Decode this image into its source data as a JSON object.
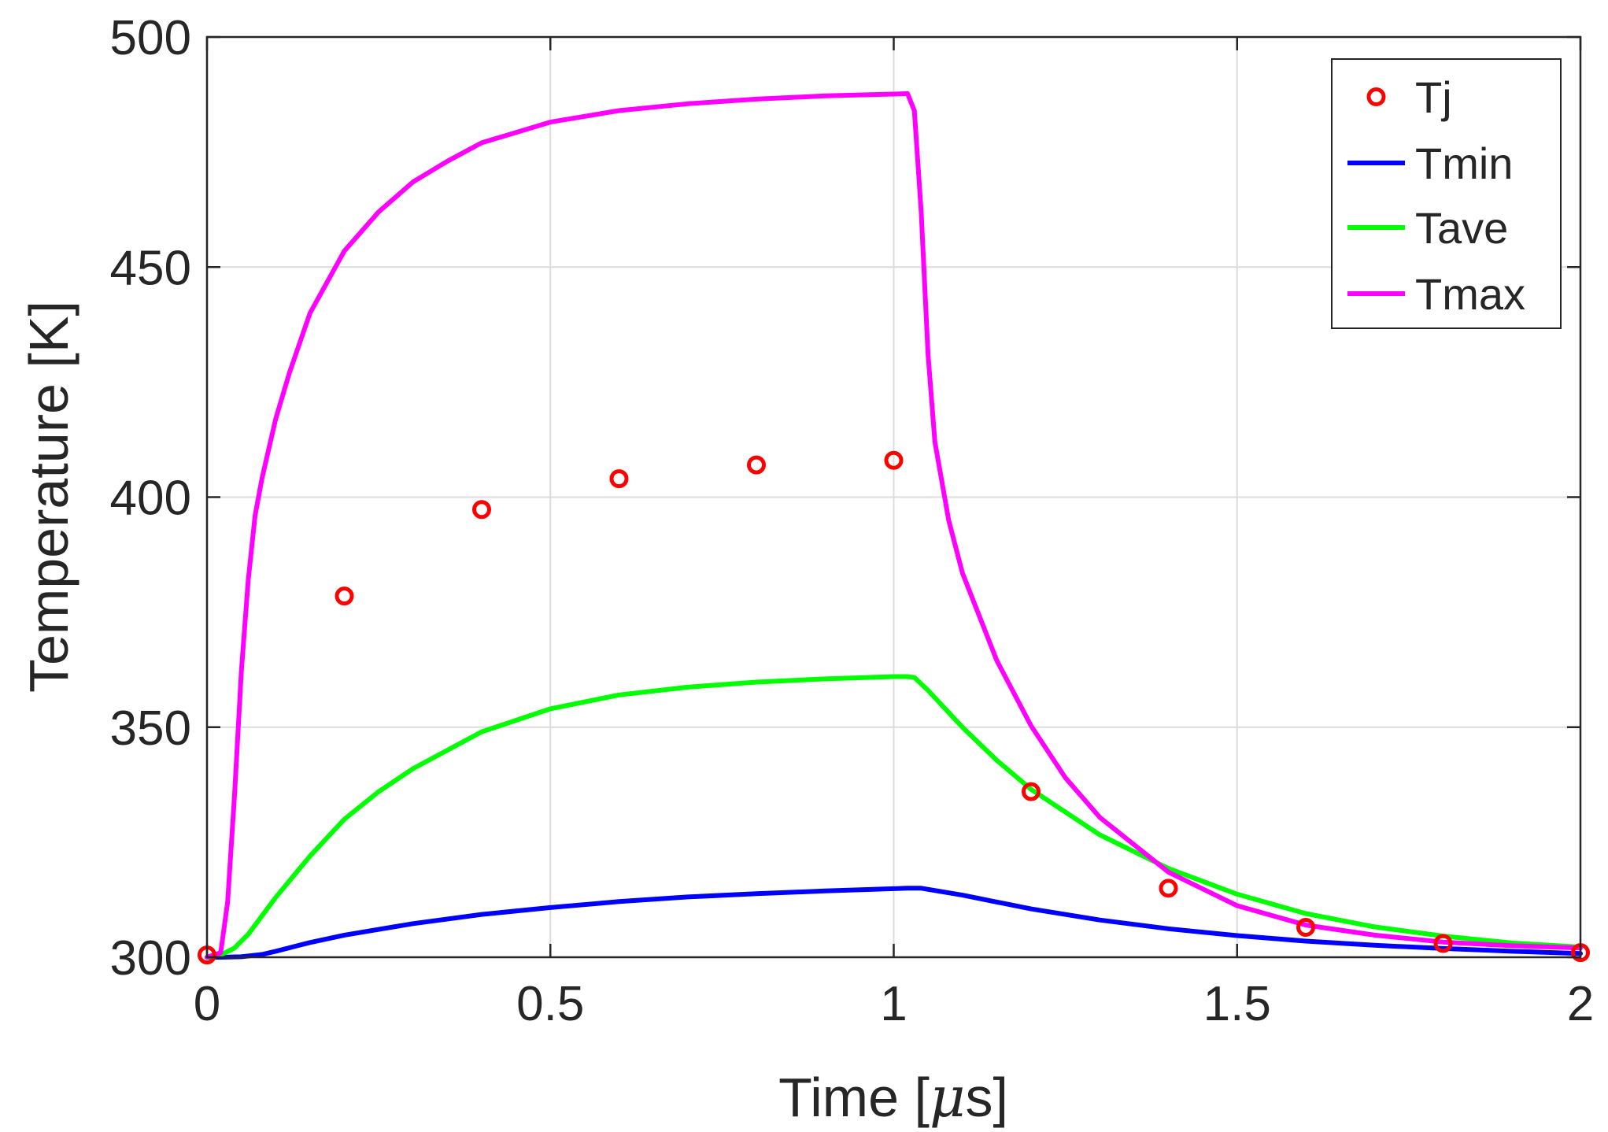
{
  "chart_data": {
    "type": "line",
    "title": "",
    "xlabel_text": "Time [",
    "xlabel_symbol": "μ",
    "xlabel_unit": "s]",
    "xlabel": "Time [μs]",
    "ylabel": "Temperature [K]",
    "xlim": [
      0,
      2
    ],
    "ylim": [
      300,
      500
    ],
    "grid": true,
    "legend_position": "top-right",
    "x_ticks": [
      0,
      0.5,
      1,
      1.5,
      2
    ],
    "y_ticks": [
      300,
      350,
      400,
      450,
      500
    ],
    "series": [
      {
        "name": "Tj",
        "kind": "markers",
        "color": "#ff0000",
        "x": [
          0,
          0.2,
          0.4,
          0.6,
          0.8,
          1.0,
          1.2,
          1.4,
          1.6,
          1.8,
          2.0
        ],
        "y": [
          300.5,
          378.5,
          397.3,
          404,
          407,
          408,
          336,
          315,
          306.5,
          303,
          301
        ]
      },
      {
        "name": "Tmin",
        "kind": "line",
        "color": "#0000ff",
        "x": [
          0,
          0.02,
          0.05,
          0.08,
          0.1,
          0.15,
          0.2,
          0.3,
          0.4,
          0.5,
          0.6,
          0.7,
          0.8,
          0.9,
          1.0,
          1.02,
          1.04,
          1.1,
          1.2,
          1.3,
          1.4,
          1.5,
          1.6,
          1.7,
          1.8,
          1.9,
          2.0
        ],
        "y": [
          300,
          300,
          300.1,
          300.6,
          301.3,
          303.2,
          304.8,
          307.3,
          309.3,
          310.8,
          312.1,
          313.1,
          313.8,
          314.4,
          314.9,
          315,
          315,
          313.5,
          310.5,
          308.1,
          306.2,
          304.7,
          303.5,
          302.6,
          301.9,
          301.3,
          300.8
        ]
      },
      {
        "name": "Tave",
        "kind": "line",
        "color": "#00ff00",
        "x": [
          0,
          0.02,
          0.04,
          0.06,
          0.08,
          0.1,
          0.15,
          0.2,
          0.25,
          0.3,
          0.4,
          0.5,
          0.6,
          0.7,
          0.8,
          0.9,
          1.0,
          1.02,
          1.03,
          1.05,
          1.1,
          1.15,
          1.2,
          1.3,
          1.4,
          1.5,
          1.6,
          1.7,
          1.8,
          1.9,
          2.0
        ],
        "y": [
          300,
          300.5,
          302,
          305,
          309,
          313,
          322,
          330,
          336,
          341,
          349,
          354,
          357,
          358.7,
          359.8,
          360.5,
          361,
          361,
          360.8,
          358,
          350,
          342.8,
          336.5,
          326.6,
          319.3,
          313.7,
          309.5,
          306.6,
          304.6,
          303.1,
          302.2
        ]
      },
      {
        "name": "Tmax",
        "kind": "line",
        "color": "#ff00ff",
        "x": [
          0,
          0.02,
          0.03,
          0.04,
          0.05,
          0.06,
          0.07,
          0.08,
          0.1,
          0.12,
          0.15,
          0.2,
          0.25,
          0.3,
          0.35,
          0.4,
          0.5,
          0.6,
          0.7,
          0.8,
          0.9,
          1.0,
          1.02,
          1.03,
          1.04,
          1.05,
          1.06,
          1.08,
          1.1,
          1.15,
          1.2,
          1.25,
          1.3,
          1.4,
          1.5,
          1.6,
          1.7,
          1.8,
          1.9,
          2.0
        ],
        "y": [
          300,
          301,
          312,
          335,
          362,
          382,
          396,
          404,
          417,
          427,
          440,
          453.5,
          462,
          468.5,
          473,
          477,
          481.5,
          484,
          485.5,
          486.5,
          487.2,
          487.6,
          487.7,
          484,
          462,
          431,
          412,
          395,
          383.5,
          364.5,
          350.3,
          339,
          330.4,
          318.5,
          311.2,
          307,
          304.8,
          303.3,
          302.5,
          302
        ]
      }
    ]
  }
}
